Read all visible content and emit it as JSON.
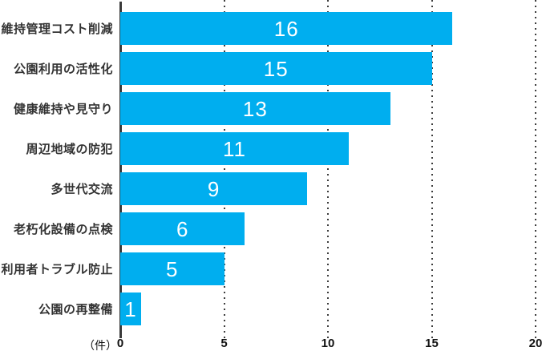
{
  "chart_data": {
    "type": "bar",
    "orientation": "horizontal",
    "categories": [
      "維持管理コスト削減",
      "公園利用の活性化",
      "健康維持や見守り",
      "周辺地域の防犯",
      "多世代交流",
      "老朽化設備の点検",
      "利用者トラブル防止",
      "公園の再整備"
    ],
    "values": [
      16,
      15,
      13,
      11,
      9,
      6,
      5,
      1
    ],
    "x_ticks": [
      "0",
      "5",
      "10",
      "15",
      "20"
    ],
    "xlim": [
      0,
      20
    ],
    "unit_label": "（件）",
    "bar_color": "#00aeef",
    "value_label_color": "#ffffff",
    "axis_color": "#3a3a3a",
    "grid": "dotted-vertical",
    "legend": "none",
    "title": ""
  }
}
